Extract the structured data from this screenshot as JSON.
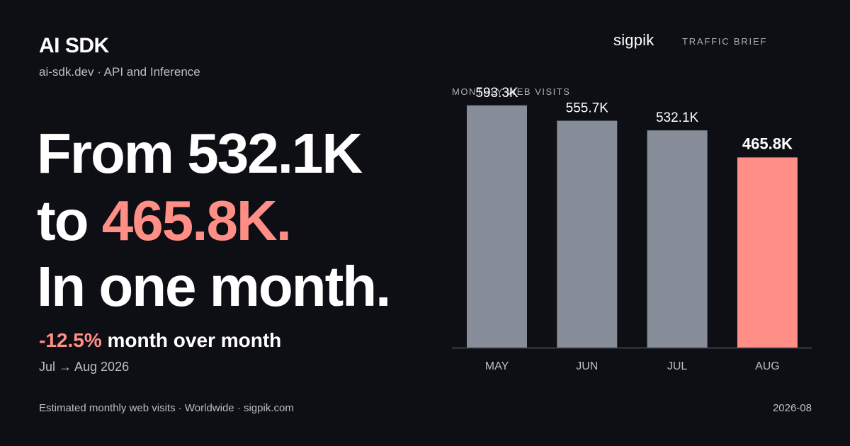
{
  "brand": {
    "name": "AI SDK",
    "subtitle": "ai-sdk.dev · API and Inference"
  },
  "header": {
    "logo": "sigpik",
    "label": "TRAFFIC BRIEF"
  },
  "headline": {
    "line1": "From 532.1K",
    "line2_prefix": "to ",
    "line2_value": "465.8K.",
    "line3": "In one month."
  },
  "change": {
    "value": "-12.5%",
    "label": " month over month",
    "period": "Jul → Aug 2026"
  },
  "footer": {
    "source": "Estimated monthly web visits · Worldwide · sigpik.com",
    "date": "2026-08"
  },
  "colors": {
    "background": "#0d0f14",
    "bar_default": "#878c99",
    "bar_highlight": "#ff8f86",
    "axis": "#4a4e57"
  },
  "chart_data": {
    "type": "bar",
    "title": "MONTHLY WEB VISITS",
    "categories": [
      "MAY",
      "JUN",
      "JUL",
      "AUG"
    ],
    "values": [
      593.3,
      555.7,
      532.1,
      465.8
    ],
    "value_labels": [
      "593.3K",
      "555.7K",
      "532.1K",
      "465.8K"
    ],
    "unit": "K visits",
    "highlight_index": 3,
    "ylim": [
      0,
      600
    ],
    "grid": false,
    "legend": "none"
  }
}
